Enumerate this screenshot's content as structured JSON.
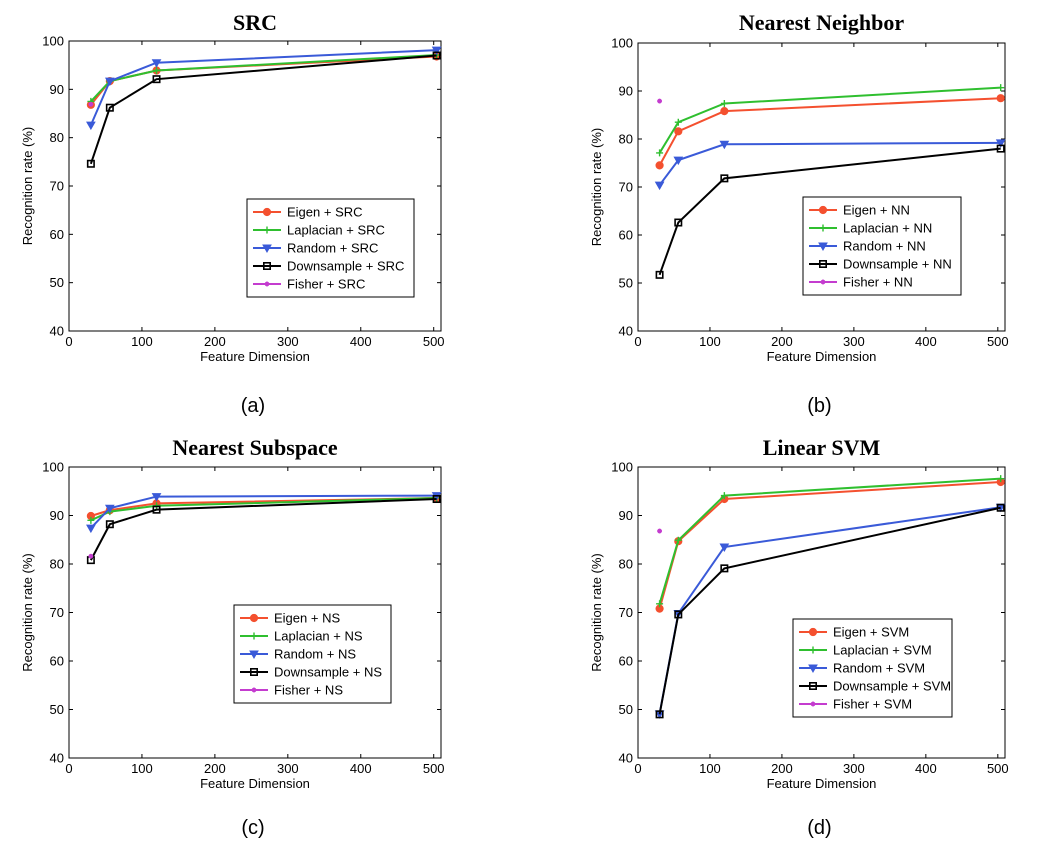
{
  "colors": {
    "eigen": "#f4502f",
    "laplacian": "#2fbf2f",
    "random": "#3a5ad8",
    "downsample": "#000000",
    "fisher": "#c43ccf"
  },
  "chart_data": [
    {
      "type": "line",
      "panel_label": "(a)",
      "title": "SRC",
      "xlabel": "Feature Dimension",
      "ylabel": "Recognition rate (%)",
      "xlim": [
        0,
        510
      ],
      "ylim": [
        40,
        100
      ],
      "xticks": [
        0,
        100,
        200,
        300,
        400,
        500
      ],
      "yticks": [
        40,
        50,
        60,
        70,
        80,
        90,
        100
      ],
      "legend_position": "lower-right",
      "series": [
        {
          "name": "Eigen + SRC",
          "color_key": "eigen",
          "marker": "circle",
          "x": [
            30,
            56,
            120,
            504
          ],
          "y": [
            86.8,
            91.7,
            93.9,
            96.8
          ]
        },
        {
          "name": "Laplacian + SRC",
          "color_key": "laplacian",
          "marker": "plus",
          "x": [
            30,
            56,
            120,
            504
          ],
          "y": [
            87.5,
            91.7,
            93.9,
            97.1
          ]
        },
        {
          "name": "Random + SRC",
          "color_key": "random",
          "marker": "triangle-down",
          "x": [
            30,
            56,
            120,
            504
          ],
          "y": [
            82.6,
            91.7,
            95.5,
            98.1
          ]
        },
        {
          "name": "Downsample + SRC",
          "color_key": "downsample",
          "marker": "square",
          "x": [
            30,
            56,
            120,
            504
          ],
          "y": [
            74.6,
            86.2,
            92.1,
            97.0
          ]
        },
        {
          "name": "Fisher + SRC",
          "color_key": "fisher",
          "marker": "dot",
          "x": [
            30
          ],
          "y": [
            86.9
          ]
        }
      ]
    },
    {
      "type": "line",
      "panel_label": "(b)",
      "title": "Nearest Neighbor",
      "xlabel": "Feature Dimension",
      "ylabel": "Recognition rate (%)",
      "xlim": [
        0,
        510
      ],
      "ylim": [
        40,
        100
      ],
      "xticks": [
        0,
        100,
        200,
        300,
        400,
        500
      ],
      "yticks": [
        40,
        50,
        60,
        70,
        80,
        90,
        100
      ],
      "legend_position": "lower-right",
      "series": [
        {
          "name": "Eigen + NN",
          "color_key": "eigen",
          "marker": "circle",
          "x": [
            30,
            56,
            120,
            504
          ],
          "y": [
            74.5,
            81.6,
            85.8,
            88.5
          ]
        },
        {
          "name": "Laplacian + NN",
          "color_key": "laplacian",
          "marker": "plus",
          "x": [
            30,
            56,
            120,
            504
          ],
          "y": [
            77.1,
            83.5,
            87.4,
            90.7
          ]
        },
        {
          "name": "Random + NN",
          "color_key": "random",
          "marker": "triangle-down",
          "x": [
            30,
            56,
            120,
            504
          ],
          "y": [
            70.4,
            75.6,
            78.9,
            79.2
          ]
        },
        {
          "name": "Downsample + NN",
          "color_key": "downsample",
          "marker": "square",
          "x": [
            30,
            56,
            120,
            504
          ],
          "y": [
            51.7,
            62.6,
            71.8,
            78.0
          ]
        },
        {
          "name": "Fisher + NN",
          "color_key": "fisher",
          "marker": "dot",
          "x": [
            30
          ],
          "y": [
            87.9
          ]
        }
      ]
    },
    {
      "type": "line",
      "panel_label": "(c)",
      "title": "Nearest Subspace",
      "xlabel": "Feature Dimension",
      "ylabel": "Recognition rate (%)",
      "xlim": [
        0,
        510
      ],
      "ylim": [
        40,
        100
      ],
      "xticks": [
        0,
        100,
        200,
        300,
        400,
        500
      ],
      "yticks": [
        40,
        50,
        60,
        70,
        80,
        90,
        100
      ],
      "legend_position": "lower-right",
      "series": [
        {
          "name": "Eigen + NS",
          "color_key": "eigen",
          "marker": "circle",
          "x": [
            30,
            56,
            120,
            504
          ],
          "y": [
            89.9,
            91.1,
            92.5,
            93.6
          ]
        },
        {
          "name": "Laplacian + NS",
          "color_key": "laplacian",
          "marker": "plus",
          "x": [
            30,
            56,
            120,
            504
          ],
          "y": [
            89.0,
            90.8,
            92.0,
            93.6
          ]
        },
        {
          "name": "Random + NS",
          "color_key": "random",
          "marker": "triangle-down",
          "x": [
            30,
            56,
            120,
            504
          ],
          "y": [
            87.4,
            91.5,
            93.9,
            94.1
          ]
        },
        {
          "name": "Downsample + NS",
          "color_key": "downsample",
          "marker": "square",
          "x": [
            30,
            56,
            120,
            504
          ],
          "y": [
            80.8,
            88.2,
            91.2,
            93.4
          ]
        },
        {
          "name": "Fisher + NS",
          "color_key": "fisher",
          "marker": "dot",
          "x": [
            30
          ],
          "y": [
            81.6
          ]
        }
      ]
    },
    {
      "type": "line",
      "panel_label": "(d)",
      "title": "Linear SVM",
      "xlabel": "Feature Dimension",
      "ylabel": "Recognition rate (%)",
      "xlim": [
        0,
        510
      ],
      "ylim": [
        40,
        100
      ],
      "xticks": [
        0,
        100,
        200,
        300,
        400,
        500
      ],
      "yticks": [
        40,
        50,
        60,
        70,
        80,
        90,
        100
      ],
      "legend_position": "lower-right",
      "series": [
        {
          "name": "Eigen + SVM",
          "color_key": "eigen",
          "marker": "circle",
          "x": [
            30,
            56,
            120,
            504
          ],
          "y": [
            70.8,
            84.7,
            93.4,
            96.9
          ]
        },
        {
          "name": "Laplacian + SVM",
          "color_key": "laplacian",
          "marker": "plus",
          "x": [
            30,
            56,
            120,
            504
          ],
          "y": [
            71.8,
            84.9,
            94.1,
            97.6
          ]
        },
        {
          "name": "Random + SVM",
          "color_key": "random",
          "marker": "triangle-down",
          "x": [
            30,
            56,
            120,
            504
          ],
          "y": [
            49.1,
            69.8,
            83.5,
            91.7
          ]
        },
        {
          "name": "Downsample + SVM",
          "color_key": "downsample",
          "marker": "square",
          "x": [
            30,
            56,
            120,
            504
          ],
          "y": [
            49.0,
            69.6,
            79.1,
            91.6
          ]
        },
        {
          "name": "Fisher + SVM",
          "color_key": "fisher",
          "marker": "dot",
          "x": [
            30
          ],
          "y": [
            86.8
          ]
        }
      ]
    }
  ]
}
